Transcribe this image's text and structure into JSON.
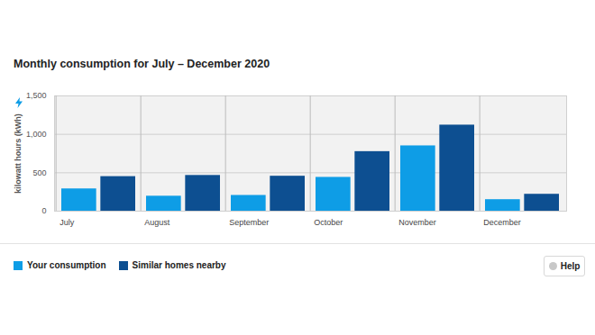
{
  "chart_data": {
    "type": "bar",
    "title": "Monthly consumption for July – December 2020",
    "y_label": "kilowatt hours (kWh)",
    "categories": [
      "July",
      "August",
      "September",
      "October",
      "November",
      "December"
    ],
    "series": [
      {
        "name": "Your consumption",
        "color": "#0e9de6",
        "values": [
          290,
          195,
          205,
          440,
          850,
          150
        ]
      },
      {
        "name": "Similar homes nearby",
        "color": "#0d4f91",
        "values": [
          450,
          465,
          455,
          775,
          1120,
          220
        ]
      }
    ],
    "ylim": [
      0,
      1500
    ],
    "yticks": [
      0,
      500,
      1000,
      1500
    ],
    "grid": true,
    "legend": "bottom-left",
    "annotations": [
      "Help"
    ]
  }
}
